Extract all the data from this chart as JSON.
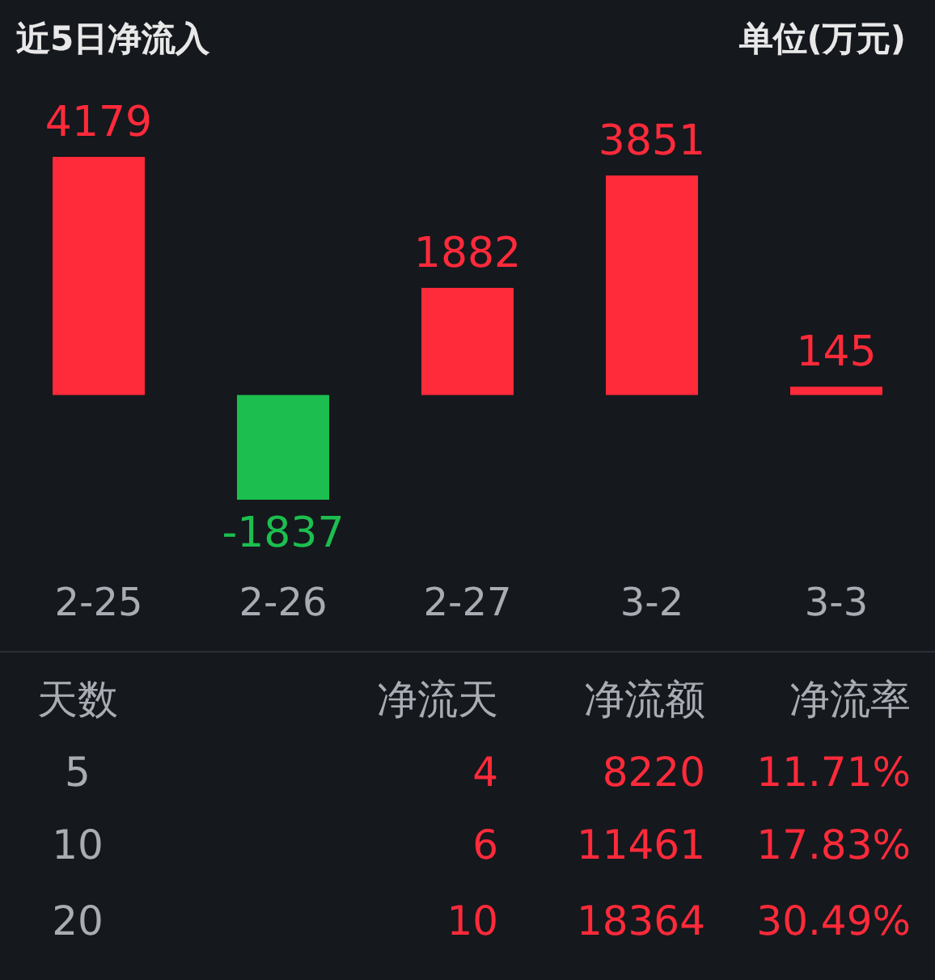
{
  "chart_data": {
    "type": "bar",
    "title": "近5日净流入",
    "subtitle": "单位(万元)",
    "categories": [
      "2-25",
      "2-26",
      "2-27",
      "3-2",
      "3-3"
    ],
    "values": [
      4179,
      -1837,
      1882,
      3851,
      145
    ],
    "colors": [
      "#ff2a3a",
      "#1cbf4f",
      "#ff2a3a",
      "#ff2a3a",
      "#ff2a3a"
    ],
    "data_labels": true,
    "grid": false,
    "annotations": [
      "天数",
      "净流天",
      "净流额",
      "净流率",
      "5",
      "4",
      "8220",
      "11.71%",
      "10",
      "6",
      "11461",
      "17.83%",
      "20",
      "10",
      "18364",
      "30.49%"
    ]
  }
}
